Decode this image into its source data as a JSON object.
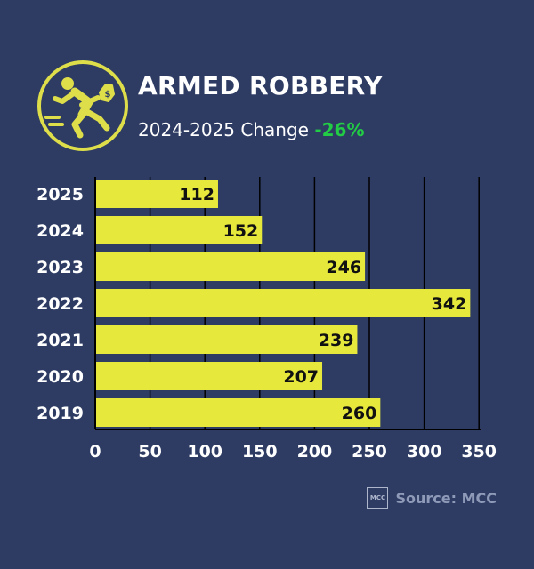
{
  "header": {
    "title": "ARMED ROBBERY",
    "subtitle_prefix": "2024-2025 Change ",
    "change_value": "-26%",
    "icon": "fleeing-robber-icon"
  },
  "footer": {
    "source_label": "Source: MCC",
    "logo_text": "MCC"
  },
  "colors": {
    "background": "#2e3c64",
    "bar": "#e6e83c",
    "accent": "#dede4a",
    "positive_change": "#22cc44",
    "text": "#ffffff"
  },
  "chart_data": {
    "type": "bar",
    "orientation": "horizontal",
    "categories": [
      "2025",
      "2024",
      "2023",
      "2022",
      "2021",
      "2020",
      "2019"
    ],
    "values": [
      112,
      152,
      246,
      342,
      239,
      207,
      260
    ],
    "xlim": [
      0,
      350
    ],
    "xticks": [
      0,
      50,
      100,
      150,
      200,
      250,
      300,
      350
    ],
    "grid": true,
    "data_labels": true
  }
}
